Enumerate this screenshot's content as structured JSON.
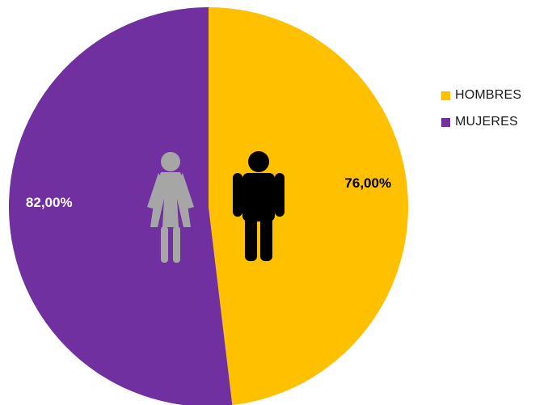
{
  "chart_data": {
    "type": "pie",
    "categories": [
      "HOMBRES",
      "MUJERES"
    ],
    "values": [
      76.0,
      82.0
    ],
    "data_labels": [
      "76,00%",
      "82,00%"
    ],
    "colors": [
      "#ffc000",
      "#7030a0"
    ],
    "legend_position": "right",
    "title": ""
  },
  "icons": {
    "female": "female-figure-icon",
    "male": "male-figure-icon",
    "female_color": "#a6a6a6",
    "male_color": "#000000"
  }
}
